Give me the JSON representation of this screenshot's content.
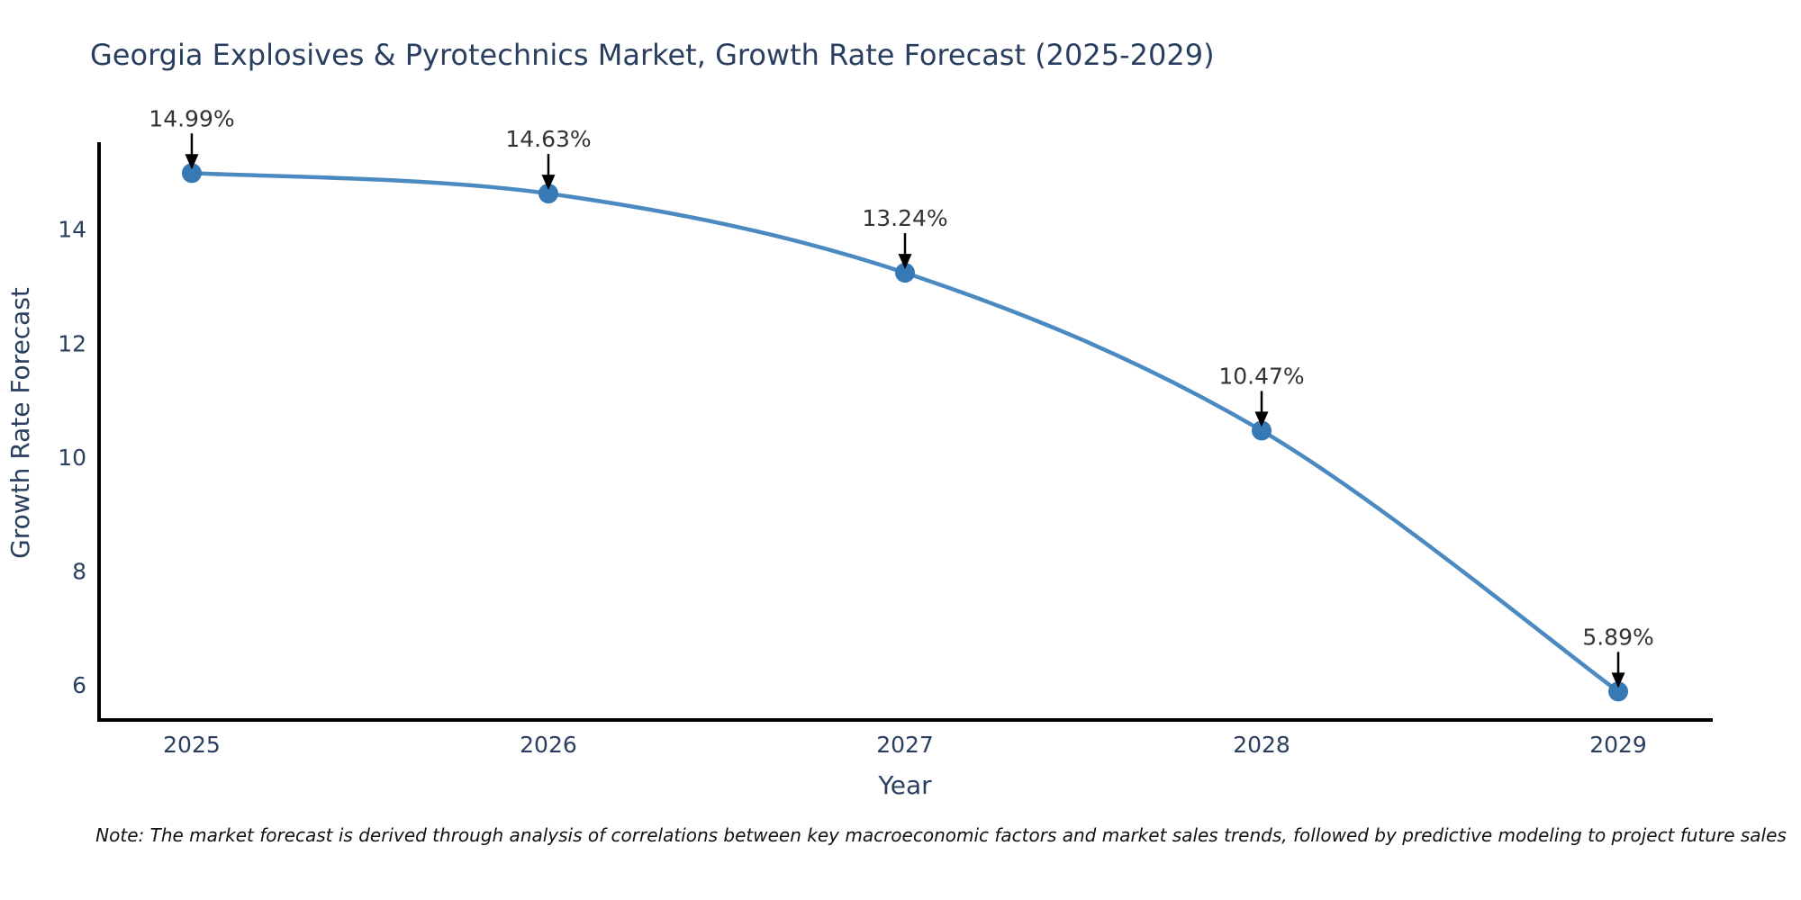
{
  "figure": {
    "title": "Georgia Explosives & Pyrotechnics Market, Growth Rate Forecast (2025-2029)",
    "note": "Note: The market forecast is derived through analysis of correlations between key macroeconomic factors and market sales trends, followed by predictive modeling to project future sales"
  },
  "chart_data": {
    "type": "line",
    "title": "Georgia Explosives & Pyrotechnics Market, Growth Rate Forecast (2025-2029)",
    "xlabel": "Year",
    "ylabel": "Growth Rate Forecast",
    "x": [
      2025,
      2026,
      2027,
      2028,
      2029
    ],
    "series": [
      {
        "name": "Growth Rate Forecast",
        "values": [
          14.99,
          14.63,
          13.24,
          10.47,
          5.89
        ]
      }
    ],
    "point_labels": [
      "14.99%",
      "14.63%",
      "13.24%",
      "10.47%",
      "5.89%"
    ],
    "xticks": [
      "2025",
      "2026",
      "2027",
      "2028",
      "2029"
    ],
    "yticks": [
      6,
      8,
      10,
      12,
      14
    ],
    "xlim": [
      2024.74,
      2029.26
    ],
    "ylim": [
      5.39,
      15.5
    ],
    "grid": false,
    "legend": "none",
    "line_shape": "spline",
    "annotations_have_arrows": true,
    "colors": {
      "line": "#4b89c1",
      "marker": "#3779b5",
      "axis_line": "#000000",
      "axis_text": "#2a3f5f",
      "title_text": "#2a3f5f",
      "annotation_text": "#333333",
      "arrow": "#000000",
      "note_text": "#111111",
      "background": "#ffffff"
    }
  }
}
